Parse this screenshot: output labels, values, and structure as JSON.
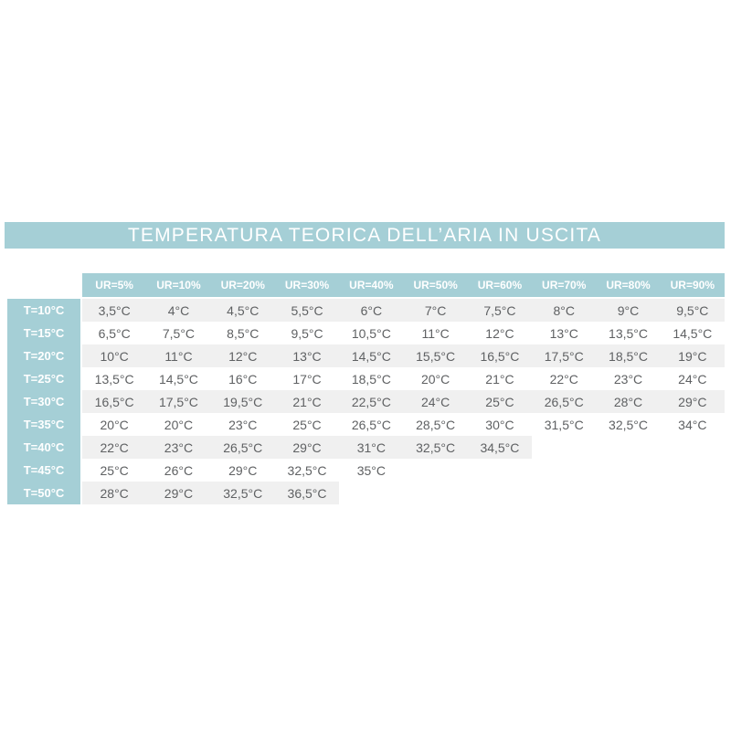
{
  "colors": {
    "teal": "#a5cfd6",
    "row_shade": "#f0f0f0",
    "data_text": "#5f6163",
    "header_text": "#ffffff"
  },
  "chart_data": {
    "type": "table",
    "title": "TEMPERATURA TEORICA DELL’ARIA IN USCITA",
    "columns": [
      "UR=5%",
      "UR=10%",
      "UR=20%",
      "UR=30%",
      "UR=40%",
      "UR=50%",
      "UR=60%",
      "UR=70%",
      "UR=80%",
      "UR=90%"
    ],
    "rows": [
      {
        "label": "T=10°C",
        "values": [
          "3,5°C",
          "4°C",
          "4,5°C",
          "5,5°C",
          "6°C",
          "7°C",
          "7,5°C",
          "8°C",
          "9°C",
          "9,5°C"
        ]
      },
      {
        "label": "T=15°C",
        "values": [
          "6,5°C",
          "7,5°C",
          "8,5°C",
          "9,5°C",
          "10,5°C",
          "11°C",
          "12°C",
          "13°C",
          "13,5°C",
          "14,5°C"
        ]
      },
      {
        "label": "T=20°C",
        "values": [
          "10°C",
          "11°C",
          "12°C",
          "13°C",
          "14,5°C",
          "15,5°C",
          "16,5°C",
          "17,5°C",
          "18,5°C",
          "19°C"
        ]
      },
      {
        "label": "T=25°C",
        "values": [
          "13,5°C",
          "14,5°C",
          "16°C",
          "17°C",
          "18,5°C",
          "20°C",
          "21°C",
          "22°C",
          "23°C",
          "24°C"
        ]
      },
      {
        "label": "T=30°C",
        "values": [
          "16,5°C",
          "17,5°C",
          "19,5°C",
          "21°C",
          "22,5°C",
          "24°C",
          "25°C",
          "26,5°C",
          "28°C",
          "29°C"
        ]
      },
      {
        "label": "T=35°C",
        "values": [
          "20°C",
          "20°C",
          "23°C",
          "25°C",
          "26,5°C",
          "28,5°C",
          "30°C",
          "31,5°C",
          "32,5°C",
          "34°C"
        ]
      },
      {
        "label": "T=40°C",
        "values": [
          "22°C",
          "23°C",
          "26,5°C",
          "29°C",
          "31°C",
          "32,5°C",
          "34,5°C"
        ]
      },
      {
        "label": "T=45°C",
        "values": [
          "25°C",
          "26°C",
          "29°C",
          "32,5°C",
          "35°C"
        ]
      },
      {
        "label": "T=50°C",
        "values": [
          "28°C",
          "29°C",
          "32,5°C",
          "36,5°C"
        ]
      }
    ],
    "num_columns": 10,
    "shading_rule": "alternate rows shaded light gray starting with first row; shading spans only populated cells"
  }
}
